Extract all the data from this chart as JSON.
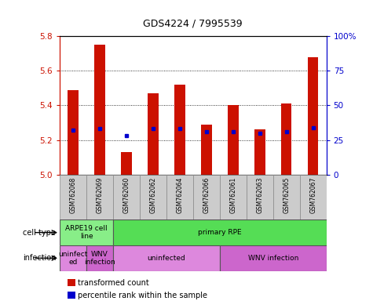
{
  "title": "GDS4224 / 7995539",
  "samples": [
    "GSM762068",
    "GSM762069",
    "GSM762060",
    "GSM762062",
    "GSM762064",
    "GSM762066",
    "GSM762061",
    "GSM762063",
    "GSM762065",
    "GSM762067"
  ],
  "transformed_counts": [
    5.49,
    5.75,
    5.13,
    5.47,
    5.52,
    5.29,
    5.4,
    5.26,
    5.41,
    5.68
  ],
  "percentile_ranks": [
    32,
    33,
    28,
    33,
    33,
    31,
    31,
    30,
    31,
    34
  ],
  "ylim_left": [
    5.0,
    5.8
  ],
  "ylim_right": [
    0,
    100
  ],
  "yticks_left": [
    5.0,
    5.2,
    5.4,
    5.6,
    5.8
  ],
  "yticks_right": [
    0,
    25,
    50,
    75,
    100
  ],
  "ytick_labels_right": [
    "0",
    "25",
    "50",
    "75",
    "100%"
  ],
  "bar_color": "#cc1100",
  "dot_color": "#0000cc",
  "bar_width": 0.4,
  "cell_type_labels": [
    {
      "label": "ARPE19 cell\nline",
      "start": 0,
      "end": 2,
      "color": "#88ee88"
    },
    {
      "label": "primary RPE",
      "start": 2,
      "end": 10,
      "color": "#55dd55"
    }
  ],
  "infection_labels": [
    {
      "label": "uninfect\ned",
      "start": 0,
      "end": 1,
      "color": "#dd88dd"
    },
    {
      "label": "WNV\ninfection",
      "start": 1,
      "end": 2,
      "color": "#cc66cc"
    },
    {
      "label": "uninfected",
      "start": 2,
      "end": 6,
      "color": "#dd88dd"
    },
    {
      "label": "WNV infection",
      "start": 6,
      "end": 10,
      "color": "#cc66cc"
    }
  ],
  "legend_items": [
    {
      "color": "#cc1100",
      "label": "transformed count"
    },
    {
      "color": "#0000cc",
      "label": "percentile rank within the sample"
    }
  ],
  "cell_type_row_label": "cell type",
  "infection_row_label": "infection",
  "sample_bg_color": "#cccccc",
  "background_color": "#ffffff",
  "plot_bg_color": "#ffffff",
  "left_axis_color": "#cc1100",
  "right_axis_color": "#0000cc"
}
